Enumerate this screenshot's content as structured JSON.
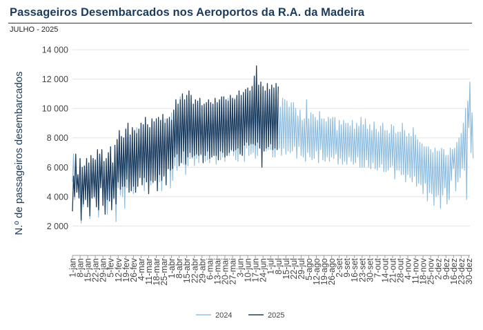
{
  "title": "Passageiros Desembarcados nos Aeroportos da R.A. da Madeira",
  "subtitle": "JULHO - 2025",
  "colors": {
    "y2024": "#8fbde0",
    "y2025": "#1b3a5c",
    "title": "#1b3a5c",
    "grid": "#e3e3e3"
  },
  "chart_data": {
    "type": "line",
    "ylabel": "N.º de passageiros desembarcados",
    "ylim": [
      0,
      14000
    ],
    "yticks": [
      2000,
      4000,
      6000,
      8000,
      10000,
      12000,
      14000
    ],
    "ytick_labels": [
      "2 000",
      "4 000",
      "6 000",
      "8 000",
      "10 000",
      "12 000",
      "14 000"
    ],
    "x_start": "1-jan",
    "x_days": 366,
    "x_tick_labels": [
      "1-jan",
      "8-jan",
      "15-jan",
      "22-jan",
      "29-jan",
      "5-fev",
      "12-fev",
      "19-fev",
      "26-fev",
      "4-mar",
      "11-mar",
      "18-mar",
      "25-mar",
      "1-abr",
      "8-abr",
      "15-abr",
      "22-abr",
      "29-abr",
      "6-mai",
      "13-mai",
      "20-mai",
      "27-mai",
      "3-jun",
      "10-jun",
      "17-jun",
      "24-jun",
      "1-jul",
      "8-jul",
      "15-jul",
      "22-jul",
      "29-jul",
      "5-ago",
      "12-ago",
      "19-ago",
      "26-ago",
      "2-set",
      "9-set",
      "16-set",
      "23-set",
      "30-set",
      "7-out",
      "14-out",
      "21-out",
      "28-out",
      "4-nov",
      "11-nov",
      "18-nov",
      "25-nov",
      "2-dez",
      "9-dez",
      "16-dez",
      "23-dez",
      "30-dez"
    ],
    "grid": true,
    "legend_position": "bottom-center",
    "series": [
      {
        "name": "2024",
        "color": "#8fbde0",
        "values": [
          5000,
          6900,
          3800,
          6300,
          4700,
          5300,
          4200,
          5900,
          2200,
          5500,
          3300,
          6000,
          5000,
          5200,
          3900,
          5800,
          2500,
          5900,
          4200,
          6500,
          3900,
          5400,
          3500,
          6400,
          2600,
          6000,
          4800,
          6700,
          3700,
          6100,
          3300,
          6100,
          2800,
          6000,
          4700,
          7100,
          3400,
          6000,
          3800,
          6200,
          2300,
          6400,
          4600,
          7500,
          4100,
          6700,
          4000,
          7400,
          3200,
          7100,
          4600,
          8200,
          5200,
          8000,
          4500,
          7700,
          4200,
          7300,
          4500,
          8700,
          5200,
          8200,
          5300,
          8000,
          4800,
          7800,
          4400,
          8300,
          5300,
          8600,
          5100,
          8600,
          4800,
          8600,
          4900,
          8600,
          5600,
          9000,
          5400,
          8900,
          5000,
          8800,
          4400,
          9200,
          5900,
          9300,
          5200,
          9200,
          5900,
          9200,
          4600,
          9700,
          5100,
          9200,
          6100,
          8900,
          5800,
          9400,
          6100,
          10800,
          6700,
          9900,
          6200,
          9800,
          5500,
          10000,
          6100,
          10800,
          6600,
          10300,
          6600,
          9900,
          6100,
          10100,
          6600,
          10400,
          6300,
          10100,
          6800,
          9500,
          6400,
          9900,
          6400,
          10200,
          6500,
          9700,
          6300,
          10300,
          6700,
          10100,
          7000,
          9900,
          6200,
          10200,
          6700,
          10500,
          6500,
          10600,
          6700,
          10100,
          6400,
          10400,
          6900,
          10700,
          6800,
          10700,
          7100,
          10600,
          6800,
          10700,
          6500,
          10600,
          6400,
          10500,
          7100,
          10300,
          7000,
          10900,
          6400,
          10400,
          7300,
          11000,
          6800,
          10700,
          6900,
          10500,
          7000,
          10400,
          6600,
          10600,
          6800,
          10500,
          7300,
          10900,
          6900,
          10700,
          7100,
          10700,
          7100,
          10400,
          7200,
          10600,
          7200,
          10600,
          6700,
          10400,
          6700,
          10800,
          7600,
          10700,
          7300,
          10100,
          6800,
          10700,
          7300,
          10600,
          6900,
          10500,
          7100,
          10100,
          7000,
          10400,
          7100,
          10400,
          7400,
          10000,
          6600,
          9500,
          7400,
          9900,
          6800,
          9200,
          6700,
          9300,
          6400,
          10600,
          7000,
          9300,
          6700,
          9700,
          6500,
          9600,
          6600,
          9400,
          7100,
          9200,
          6300,
          9800,
          7200,
          9300,
          6500,
          9300,
          6400,
          9100,
          6700,
          9400,
          6400,
          9300,
          6700,
          9400,
          6600,
          9400,
          6900,
          8500,
          6200,
          9200,
          6600,
          8900,
          6200,
          9200,
          6400,
          9000,
          6200,
          9000,
          6700,
          8800,
          6400,
          9200,
          6200,
          8600,
          6300,
          9000,
          6700,
          8800,
          6000,
          9400,
          6000,
          8900,
          6000,
          9300,
          6500,
          8600,
          6000,
          8900,
          5900,
          8500,
          6300,
          9100,
          5900,
          8600,
          5800,
          8400,
          6000,
          8800,
          6200,
          9000,
          5700,
          8500,
          5700,
          8500,
          5800,
          8300,
          6000,
          8900,
          6100,
          8800,
          5200,
          8300,
          5800,
          8400,
          5800,
          8400,
          5500,
          9000,
          5500,
          8500,
          5000,
          8100,
          5500,
          8300,
          5300,
          8100,
          5000,
          8700,
          5400,
          8200,
          4700,
          7900,
          4900,
          7700,
          4800,
          7600,
          4200,
          7400,
          4900,
          7400,
          3700,
          7400,
          4300,
          7200,
          4200,
          7000,
          3400,
          7300,
          4000,
          7100,
          4100,
          7100,
          3200,
          7300,
          4100,
          7200,
          4600,
          6800,
          3500,
          6800,
          3800,
          7300,
          5100,
          7200,
          5900,
          7300,
          4400,
          7700,
          5000,
          8000,
          5300,
          8300,
          5900,
          9000,
          5800,
          10000,
          3800,
          10500,
          8700,
          11800,
          7000,
          9700,
          6600
        ],
        "data_labels": [
          "2024"
        ]
      },
      {
        "name": "2025",
        "color": "#1b3a5c",
        "values": [
          3000,
          5400,
          4000,
          6900,
          4300,
          5500,
          3900,
          6600,
          2400,
          6000,
          3500,
          6100,
          3800,
          6600,
          3300,
          6300,
          2700,
          6800,
          3900,
          6600,
          4000,
          6500,
          3300,
          7200,
          3100,
          6900,
          4600,
          7200,
          3400,
          6400,
          2800,
          6600,
          3800,
          7000,
          3700,
          7400,
          3100,
          6300,
          3900,
          7500,
          3500,
          7900,
          5000,
          8500,
          4500,
          8100,
          4700,
          8000,
          4700,
          8600,
          5200,
          9000,
          4300,
          8200,
          4400,
          8700,
          4700,
          8500,
          4300,
          8300,
          4700,
          8600,
          5300,
          9000,
          4800,
          8900,
          5300,
          9400,
          5000,
          8900,
          4200,
          8700,
          5100,
          9300,
          5000,
          9100,
          5100,
          9300,
          4400,
          9400,
          5500,
          9200,
          5100,
          9600,
          5400,
          9000,
          4800,
          9300,
          5900,
          9400,
          5800,
          9200,
          5900,
          9900,
          6700,
          10600,
          6900,
          10300,
          6100,
          10600,
          6300,
          11000,
          7100,
          10600,
          6200,
          10900,
          6700,
          11200,
          7000,
          10900,
          6700,
          10300,
          6800,
          10600,
          6900,
          10500,
          6800,
          10700,
          6900,
          10200,
          6300,
          10300,
          6800,
          10400,
          7100,
          10600,
          6600,
          10400,
          6700,
          10300,
          6800,
          10700,
          6800,
          10400,
          6500,
          10600,
          7100,
          10800,
          7000,
          10800,
          6700,
          10600,
          6800,
          10500,
          7000,
          10900,
          7200,
          10700,
          7100,
          10600,
          7200,
          10900,
          7300,
          11200,
          6900,
          10900,
          6800,
          11100,
          7500,
          11300,
          7700,
          11400,
          7500,
          11200,
          7600,
          11500,
          7600,
          12200,
          7500,
          12900,
          7700,
          11600,
          7300,
          11800,
          6000,
          11500,
          7100,
          11200,
          7300,
          11700,
          7400,
          11300,
          7600,
          11600,
          7200,
          11400,
          7300,
          11700,
          7200,
          11500
        ]
      }
    ]
  }
}
